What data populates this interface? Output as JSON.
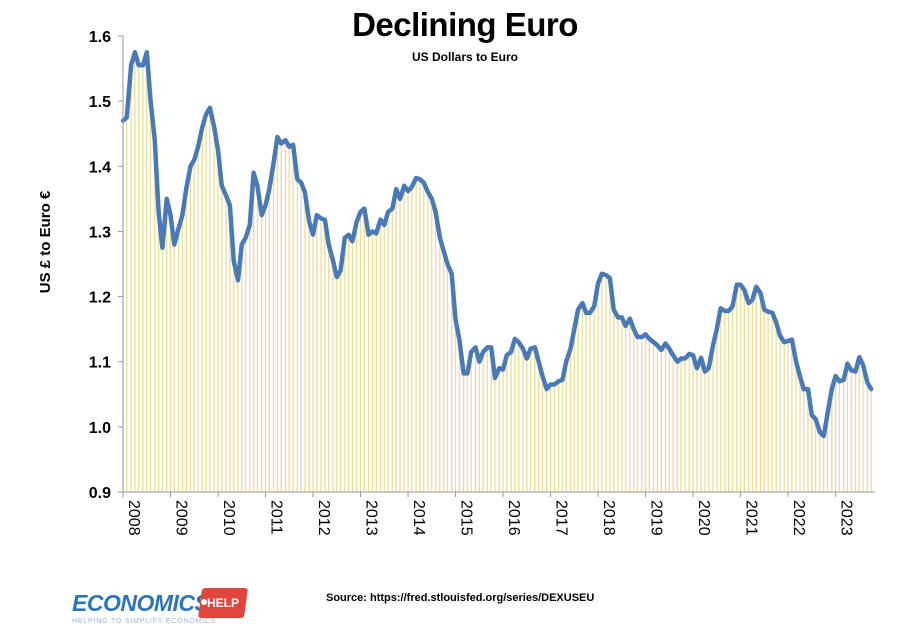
{
  "chart_data": {
    "type": "area",
    "title": "Declining Euro",
    "subtitle": "US Dollars to Euro",
    "ylabel": "US £ to Euro €",
    "xlabel": "",
    "ylim": [
      0.9,
      1.6
    ],
    "xlim": [
      2008.0,
      2023.83
    ],
    "yticks": [
      "0.9",
      "1.0",
      "1.1",
      "1.2",
      "1.3",
      "1.4",
      "1.5",
      "1.6"
    ],
    "xticks": [
      "2008",
      "2009",
      "2010",
      "2011",
      "2012",
      "2013",
      "2014",
      "2015",
      "2016",
      "2017",
      "2018",
      "2019",
      "2020",
      "2021",
      "2022",
      "2023"
    ],
    "grid": false,
    "legend": "none",
    "series": [
      {
        "line_color": "#4a7ab5",
        "fill_color": "#eedc9a",
        "points": [
          [
            2008.0,
            1.47
          ],
          [
            2008.08,
            1.475
          ],
          [
            2008.17,
            1.555
          ],
          [
            2008.25,
            1.575
          ],
          [
            2008.33,
            1.555
          ],
          [
            2008.42,
            1.555
          ],
          [
            2008.5,
            1.575
          ],
          [
            2008.58,
            1.5
          ],
          [
            2008.67,
            1.44
          ],
          [
            2008.75,
            1.33
          ],
          [
            2008.83,
            1.275
          ],
          [
            2008.92,
            1.35
          ],
          [
            2009.0,
            1.325
          ],
          [
            2009.08,
            1.28
          ],
          [
            2009.17,
            1.305
          ],
          [
            2009.25,
            1.325
          ],
          [
            2009.33,
            1.365
          ],
          [
            2009.42,
            1.4
          ],
          [
            2009.5,
            1.41
          ],
          [
            2009.58,
            1.43
          ],
          [
            2009.67,
            1.46
          ],
          [
            2009.75,
            1.48
          ],
          [
            2009.83,
            1.49
          ],
          [
            2009.92,
            1.46
          ],
          [
            2010.0,
            1.425
          ],
          [
            2010.08,
            1.37
          ],
          [
            2010.17,
            1.355
          ],
          [
            2010.25,
            1.34
          ],
          [
            2010.33,
            1.255
          ],
          [
            2010.42,
            1.225
          ],
          [
            2010.5,
            1.28
          ],
          [
            2010.58,
            1.29
          ],
          [
            2010.67,
            1.31
          ],
          [
            2010.75,
            1.39
          ],
          [
            2010.83,
            1.37
          ],
          [
            2010.92,
            1.325
          ],
          [
            2011.0,
            1.34
          ],
          [
            2011.08,
            1.365
          ],
          [
            2011.17,
            1.405
          ],
          [
            2011.25,
            1.445
          ],
          [
            2011.33,
            1.435
          ],
          [
            2011.42,
            1.44
          ],
          [
            2011.5,
            1.43
          ],
          [
            2011.58,
            1.433
          ],
          [
            2011.67,
            1.38
          ],
          [
            2011.75,
            1.375
          ],
          [
            2011.83,
            1.36
          ],
          [
            2011.92,
            1.315
          ],
          [
            2012.0,
            1.295
          ],
          [
            2012.08,
            1.325
          ],
          [
            2012.17,
            1.32
          ],
          [
            2012.25,
            1.318
          ],
          [
            2012.33,
            1.28
          ],
          [
            2012.42,
            1.255
          ],
          [
            2012.5,
            1.23
          ],
          [
            2012.58,
            1.24
          ],
          [
            2012.67,
            1.29
          ],
          [
            2012.75,
            1.295
          ],
          [
            2012.83,
            1.285
          ],
          [
            2012.92,
            1.315
          ],
          [
            2013.0,
            1.33
          ],
          [
            2013.08,
            1.335
          ],
          [
            2013.17,
            1.295
          ],
          [
            2013.25,
            1.3
          ],
          [
            2013.33,
            1.297
          ],
          [
            2013.42,
            1.318
          ],
          [
            2013.5,
            1.31
          ],
          [
            2013.58,
            1.33
          ],
          [
            2013.67,
            1.335
          ],
          [
            2013.75,
            1.365
          ],
          [
            2013.83,
            1.35
          ],
          [
            2013.92,
            1.37
          ],
          [
            2014.0,
            1.362
          ],
          [
            2014.08,
            1.368
          ],
          [
            2014.17,
            1.382
          ],
          [
            2014.25,
            1.38
          ],
          [
            2014.33,
            1.375
          ],
          [
            2014.42,
            1.36
          ],
          [
            2014.5,
            1.35
          ],
          [
            2014.58,
            1.33
          ],
          [
            2014.67,
            1.29
          ],
          [
            2014.75,
            1.27
          ],
          [
            2014.83,
            1.25
          ],
          [
            2014.92,
            1.235
          ],
          [
            2015.0,
            1.165
          ],
          [
            2015.08,
            1.135
          ],
          [
            2015.17,
            1.082
          ],
          [
            2015.25,
            1.082
          ],
          [
            2015.33,
            1.115
          ],
          [
            2015.42,
            1.122
          ],
          [
            2015.5,
            1.1
          ],
          [
            2015.58,
            1.115
          ],
          [
            2015.67,
            1.122
          ],
          [
            2015.75,
            1.122
          ],
          [
            2015.83,
            1.075
          ],
          [
            2015.92,
            1.09
          ],
          [
            2016.0,
            1.088
          ],
          [
            2016.08,
            1.11
          ],
          [
            2016.17,
            1.115
          ],
          [
            2016.25,
            1.135
          ],
          [
            2016.33,
            1.13
          ],
          [
            2016.42,
            1.12
          ],
          [
            2016.5,
            1.105
          ],
          [
            2016.58,
            1.12
          ],
          [
            2016.67,
            1.122
          ],
          [
            2016.75,
            1.1
          ],
          [
            2016.83,
            1.078
          ],
          [
            2016.92,
            1.058
          ],
          [
            2017.0,
            1.065
          ],
          [
            2017.08,
            1.065
          ],
          [
            2017.17,
            1.07
          ],
          [
            2017.25,
            1.072
          ],
          [
            2017.33,
            1.1
          ],
          [
            2017.42,
            1.12
          ],
          [
            2017.5,
            1.15
          ],
          [
            2017.58,
            1.18
          ],
          [
            2017.67,
            1.19
          ],
          [
            2017.75,
            1.175
          ],
          [
            2017.83,
            1.175
          ],
          [
            2017.92,
            1.185
          ],
          [
            2018.0,
            1.22
          ],
          [
            2018.08,
            1.235
          ],
          [
            2018.17,
            1.233
          ],
          [
            2018.25,
            1.228
          ],
          [
            2018.33,
            1.18
          ],
          [
            2018.42,
            1.168
          ],
          [
            2018.5,
            1.168
          ],
          [
            2018.58,
            1.155
          ],
          [
            2018.67,
            1.166
          ],
          [
            2018.75,
            1.15
          ],
          [
            2018.83,
            1.138
          ],
          [
            2018.92,
            1.138
          ],
          [
            2019.0,
            1.142
          ],
          [
            2019.08,
            1.135
          ],
          [
            2019.17,
            1.13
          ],
          [
            2019.25,
            1.125
          ],
          [
            2019.33,
            1.118
          ],
          [
            2019.42,
            1.128
          ],
          [
            2019.5,
            1.12
          ],
          [
            2019.58,
            1.11
          ],
          [
            2019.67,
            1.1
          ],
          [
            2019.75,
            1.105
          ],
          [
            2019.83,
            1.105
          ],
          [
            2019.92,
            1.112
          ],
          [
            2020.0,
            1.11
          ],
          [
            2020.08,
            1.09
          ],
          [
            2020.17,
            1.106
          ],
          [
            2020.25,
            1.085
          ],
          [
            2020.33,
            1.09
          ],
          [
            2020.42,
            1.125
          ],
          [
            2020.5,
            1.15
          ],
          [
            2020.58,
            1.182
          ],
          [
            2020.67,
            1.178
          ],
          [
            2020.75,
            1.178
          ],
          [
            2020.83,
            1.185
          ],
          [
            2020.92,
            1.218
          ],
          [
            2021.0,
            1.218
          ],
          [
            2021.08,
            1.21
          ],
          [
            2021.17,
            1.19
          ],
          [
            2021.25,
            1.195
          ],
          [
            2021.33,
            1.215
          ],
          [
            2021.42,
            1.205
          ],
          [
            2021.5,
            1.18
          ],
          [
            2021.58,
            1.177
          ],
          [
            2021.67,
            1.175
          ],
          [
            2021.75,
            1.16
          ],
          [
            2021.83,
            1.14
          ],
          [
            2021.92,
            1.13
          ],
          [
            2022.0,
            1.132
          ],
          [
            2022.08,
            1.134
          ],
          [
            2022.17,
            1.1
          ],
          [
            2022.25,
            1.078
          ],
          [
            2022.33,
            1.058
          ],
          [
            2022.42,
            1.058
          ],
          [
            2022.5,
            1.018
          ],
          [
            2022.58,
            1.012
          ],
          [
            2022.67,
            0.992
          ],
          [
            2022.75,
            0.986
          ],
          [
            2022.83,
            1.02
          ],
          [
            2022.92,
            1.058
          ],
          [
            2023.0,
            1.078
          ],
          [
            2023.08,
            1.07
          ],
          [
            2023.17,
            1.072
          ],
          [
            2023.25,
            1.097
          ],
          [
            2023.33,
            1.087
          ],
          [
            2023.42,
            1.085
          ],
          [
            2023.5,
            1.107
          ],
          [
            2023.58,
            1.095
          ],
          [
            2023.67,
            1.068
          ],
          [
            2023.75,
            1.058
          ]
        ]
      }
    ]
  },
  "source": "Source: https://fred.stlouisfed.org/series/DEXUSEU",
  "logo": {
    "word": "ECONOMICS",
    "badge": "HELP",
    "tagline": "HELPING TO SIMPLIFY ECONOMICS",
    "word_color": "#2e75b6",
    "badge_color": "#e0463b"
  }
}
